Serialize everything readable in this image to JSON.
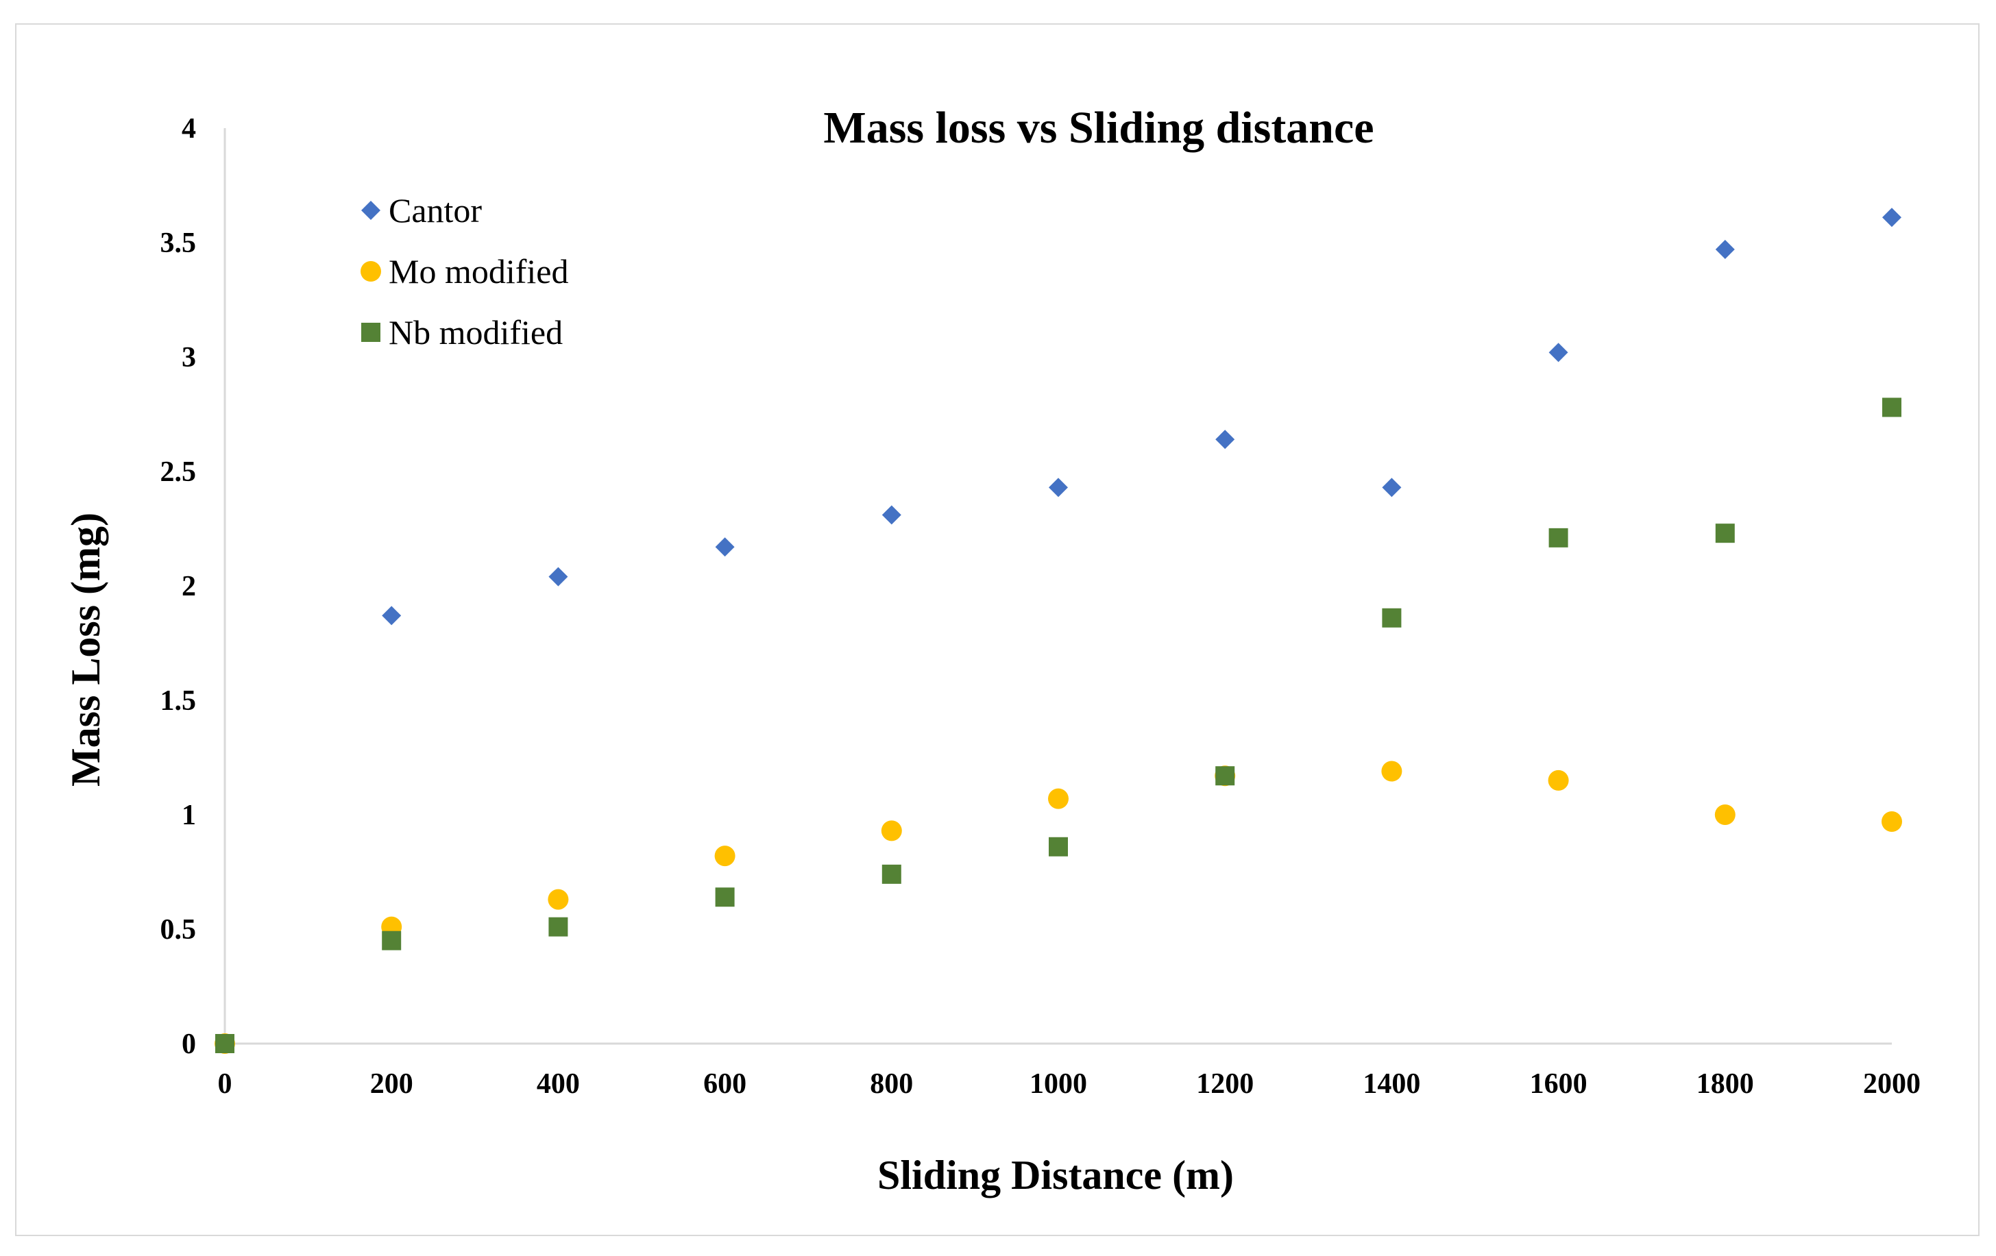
{
  "chart_data": {
    "type": "scatter",
    "title": "Mass loss vs Sliding distance",
    "xlabel": "Sliding Distance (m)",
    "ylabel": "Mass Loss (mg)",
    "xlim": [
      0,
      2000
    ],
    "ylim": [
      0,
      4
    ],
    "x_ticks": [
      0,
      200,
      400,
      600,
      800,
      1000,
      1200,
      1400,
      1600,
      1800,
      2000
    ],
    "y_ticks": [
      0,
      0.5,
      1,
      1.5,
      2,
      2.5,
      3,
      3.5,
      4
    ],
    "y_tick_labels": [
      "0",
      "0.5",
      "1",
      "1.5",
      "2",
      "2.5",
      "3",
      "3.5",
      "4"
    ],
    "grid": false,
    "legend_position": "top-left",
    "x": [
      0,
      200,
      400,
      600,
      800,
      1000,
      1200,
      1400,
      1600,
      1800,
      2000
    ],
    "series": [
      {
        "name": "Cantor",
        "marker": "diamond",
        "color": "#4472c4",
        "values": [
          0,
          1.87,
          2.04,
          2.17,
          2.31,
          2.43,
          2.64,
          2.43,
          3.02,
          3.47,
          3.61
        ]
      },
      {
        "name": "Mo modified",
        "marker": "circle",
        "color": "#ffc000",
        "values": [
          0,
          0.51,
          0.63,
          0.82,
          0.93,
          1.07,
          1.17,
          1.19,
          1.15,
          1.0,
          0.97
        ]
      },
      {
        "name": "Nb modified",
        "marker": "square",
        "color": "#548235",
        "values": [
          0,
          0.45,
          0.51,
          0.64,
          0.74,
          0.86,
          1.17,
          1.86,
          2.21,
          2.23,
          2.78
        ]
      }
    ]
  }
}
